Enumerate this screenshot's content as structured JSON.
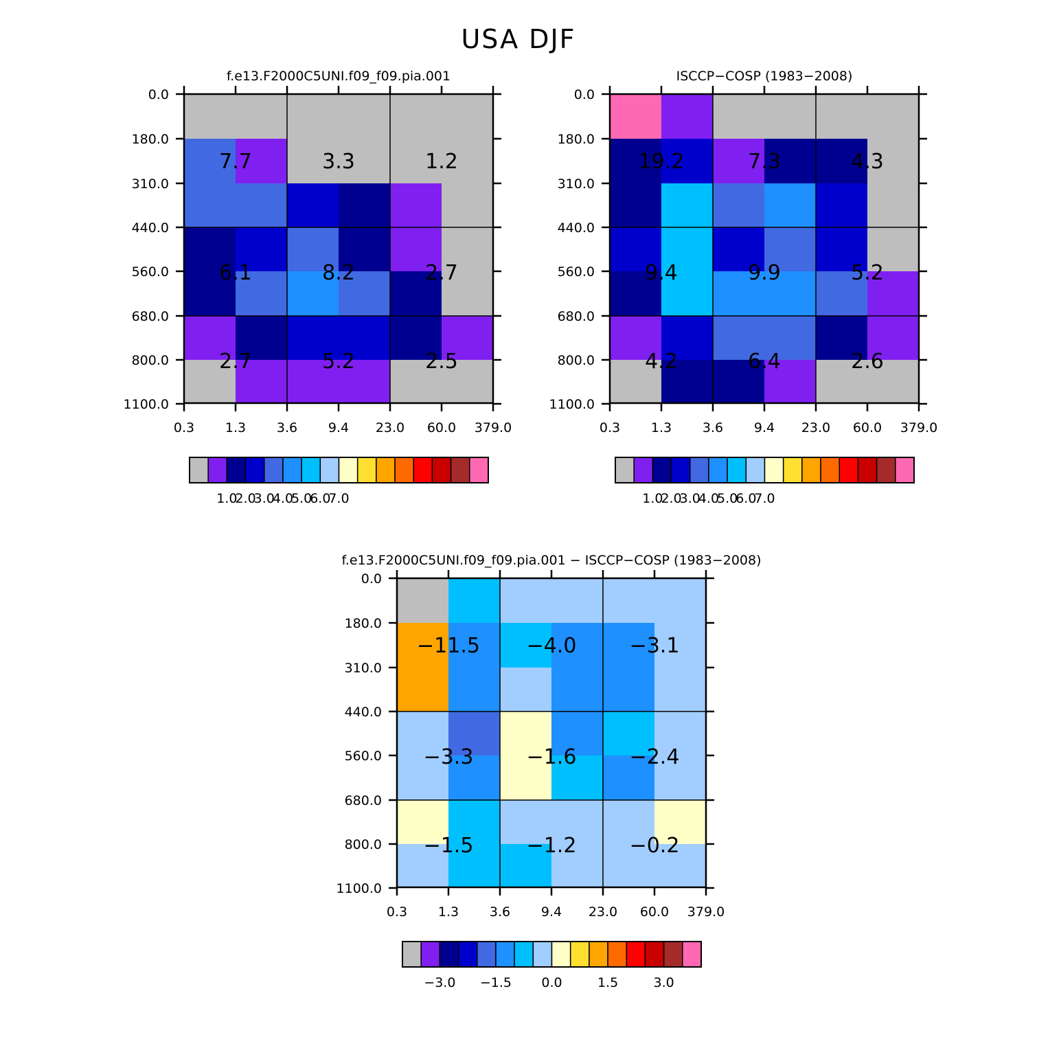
{
  "title": "USA DJF",
  "chart_data": [
    {
      "type": "heatmap",
      "id": "model",
      "title": "f.e13.F2000C5UNI.f09_f09.pia.001",
      "x_ticks": [
        "0.3",
        "1.3",
        "3.6",
        "9.4",
        "23.0",
        "60.0",
        "379.0"
      ],
      "y_ticks": [
        "0.0",
        "180.0",
        "310.0",
        "440.0",
        "560.0",
        "680.0",
        "800.0",
        "1100.0"
      ],
      "cells": [
        [
          "gray",
          "gray",
          "gray",
          "gray",
          "gray",
          "gray"
        ],
        [
          "royalblue",
          "purple",
          "gray",
          "gray",
          "gray",
          "gray"
        ],
        [
          "royalblue",
          "royalblue",
          "mediumblue",
          "navy",
          "purple",
          "gray"
        ],
        [
          "navy",
          "mediumblue",
          "royalblue",
          "navy",
          "purple",
          "gray"
        ],
        [
          "navy",
          "royalblue",
          "dodgerblue",
          "royalblue",
          "navy",
          "gray"
        ],
        [
          "purple",
          "navy",
          "mediumblue",
          "mediumblue",
          "navy",
          "purple"
        ],
        [
          "gray",
          "purple",
          "purple",
          "purple",
          "gray",
          "gray"
        ]
      ],
      "box_values": [
        [
          "7.7",
          "3.3",
          "1.2"
        ],
        [
          "6.1",
          "8.2",
          "2.7"
        ],
        [
          "2.7",
          "5.2",
          "2.5"
        ]
      ],
      "colorbar": {
        "labels": [
          "1.0",
          "2.0",
          "3.0",
          "4.0",
          "5.0",
          "6.0",
          "7.0"
        ]
      }
    },
    {
      "type": "heatmap",
      "id": "obs",
      "title": "ISCCP-COSP (1983-2008)",
      "x_ticks": [
        "0.3",
        "1.3",
        "3.6",
        "9.4",
        "23.0",
        "60.0",
        "379.0"
      ],
      "y_ticks": [
        "0.0",
        "180.0",
        "310.0",
        "440.0",
        "560.0",
        "680.0",
        "800.0",
        "1100.0"
      ],
      "cells": [
        [
          "hotpink",
          "purple",
          "gray",
          "gray",
          "gray",
          "gray"
        ],
        [
          "navy",
          "mediumblue",
          "purple",
          "navy",
          "navy",
          "gray"
        ],
        [
          "navy",
          "deepskyblue",
          "royalblue",
          "dodgerblue",
          "mediumblue",
          "gray"
        ],
        [
          "mediumblue",
          "deepskyblue",
          "mediumblue",
          "royalblue",
          "mediumblue",
          "gray"
        ],
        [
          "navy",
          "deepskyblue",
          "dodgerblue",
          "dodgerblue",
          "royalblue",
          "purple"
        ],
        [
          "purple",
          "mediumblue",
          "royalblue",
          "royalblue",
          "navy",
          "purple"
        ],
        [
          "gray",
          "navy",
          "navy",
          "purple",
          "gray",
          "gray"
        ]
      ],
      "box_values": [
        [
          "19.2",
          "7.3",
          "4.3"
        ],
        [
          "9.4",
          "9.9",
          "5.2"
        ],
        [
          "4.2",
          "6.4",
          "2.6"
        ]
      ],
      "colorbar": {
        "labels": [
          "1.0",
          "2.0",
          "3.0",
          "4.0",
          "5.0",
          "6.0",
          "7.0"
        ]
      }
    },
    {
      "type": "heatmap",
      "id": "diff",
      "title": "f.e13.F2000C5UNI.f09_f09.pia.001 - ISCCP-COSP (1983-2008)",
      "x_ticks": [
        "0.3",
        "1.3",
        "3.6",
        "9.4",
        "23.0",
        "60.0",
        "379.0"
      ],
      "y_ticks": [
        "0.0",
        "180.0",
        "310.0",
        "440.0",
        "560.0",
        "680.0",
        "800.0",
        "1100.0"
      ],
      "cells": [
        [
          "gray",
          "deepskyblue",
          "lightblue",
          "lightblue",
          "lightblue",
          "lightblue"
        ],
        [
          "orange",
          "dodgerblue",
          "deepskyblue",
          "dodgerblue",
          "dodgerblue",
          "lightblue"
        ],
        [
          "orange",
          "dodgerblue",
          "lightblue",
          "dodgerblue",
          "dodgerblue",
          "lightblue"
        ],
        [
          "lightblue",
          "royalblue",
          "cream",
          "dodgerblue",
          "deepskyblue",
          "lightblue"
        ],
        [
          "lightblue",
          "dodgerblue",
          "cream",
          "deepskyblue",
          "dodgerblue",
          "lightblue"
        ],
        [
          "cream",
          "deepskyblue",
          "lightblue",
          "lightblue",
          "lightblue",
          "cream"
        ],
        [
          "lightblue",
          "deepskyblue",
          "deepskyblue",
          "lightblue",
          "lightblue",
          "lightblue"
        ]
      ],
      "box_values": [
        [
          "-11.5",
          "-4.0",
          "-3.1"
        ],
        [
          "-3.3",
          "-1.6",
          "-2.4"
        ],
        [
          "-1.5",
          "-1.2",
          "-0.2"
        ]
      ],
      "colorbar": {
        "labels": [
          "-3.0",
          "-1.5",
          "0.0",
          "1.5",
          "3.0"
        ]
      }
    }
  ],
  "palette": {
    "gray": "#bebebe",
    "purple": "#8020f0",
    "navy": "#000090",
    "mediumblue": "#0000cd",
    "royalblue": "#4169e1",
    "dodgerblue": "#1e90ff",
    "deepskyblue": "#00bfff",
    "lightblue": "#a2cdff",
    "cream": "#ffffc8",
    "gold": "#ffe030",
    "orange": "#ffa500",
    "darkorange": "#ff6a00",
    "red": "#ff0000",
    "darkred": "#c80000",
    "brown": "#a52a2a",
    "hotpink": "#ff69b4"
  },
  "colorbar_swatches": [
    "gray",
    "purple",
    "navy",
    "mediumblue",
    "royalblue",
    "dodgerblue",
    "deepskyblue",
    "lightblue",
    "cream",
    "gold",
    "orange",
    "darkorange",
    "red",
    "darkred",
    "brown",
    "hotpink"
  ]
}
